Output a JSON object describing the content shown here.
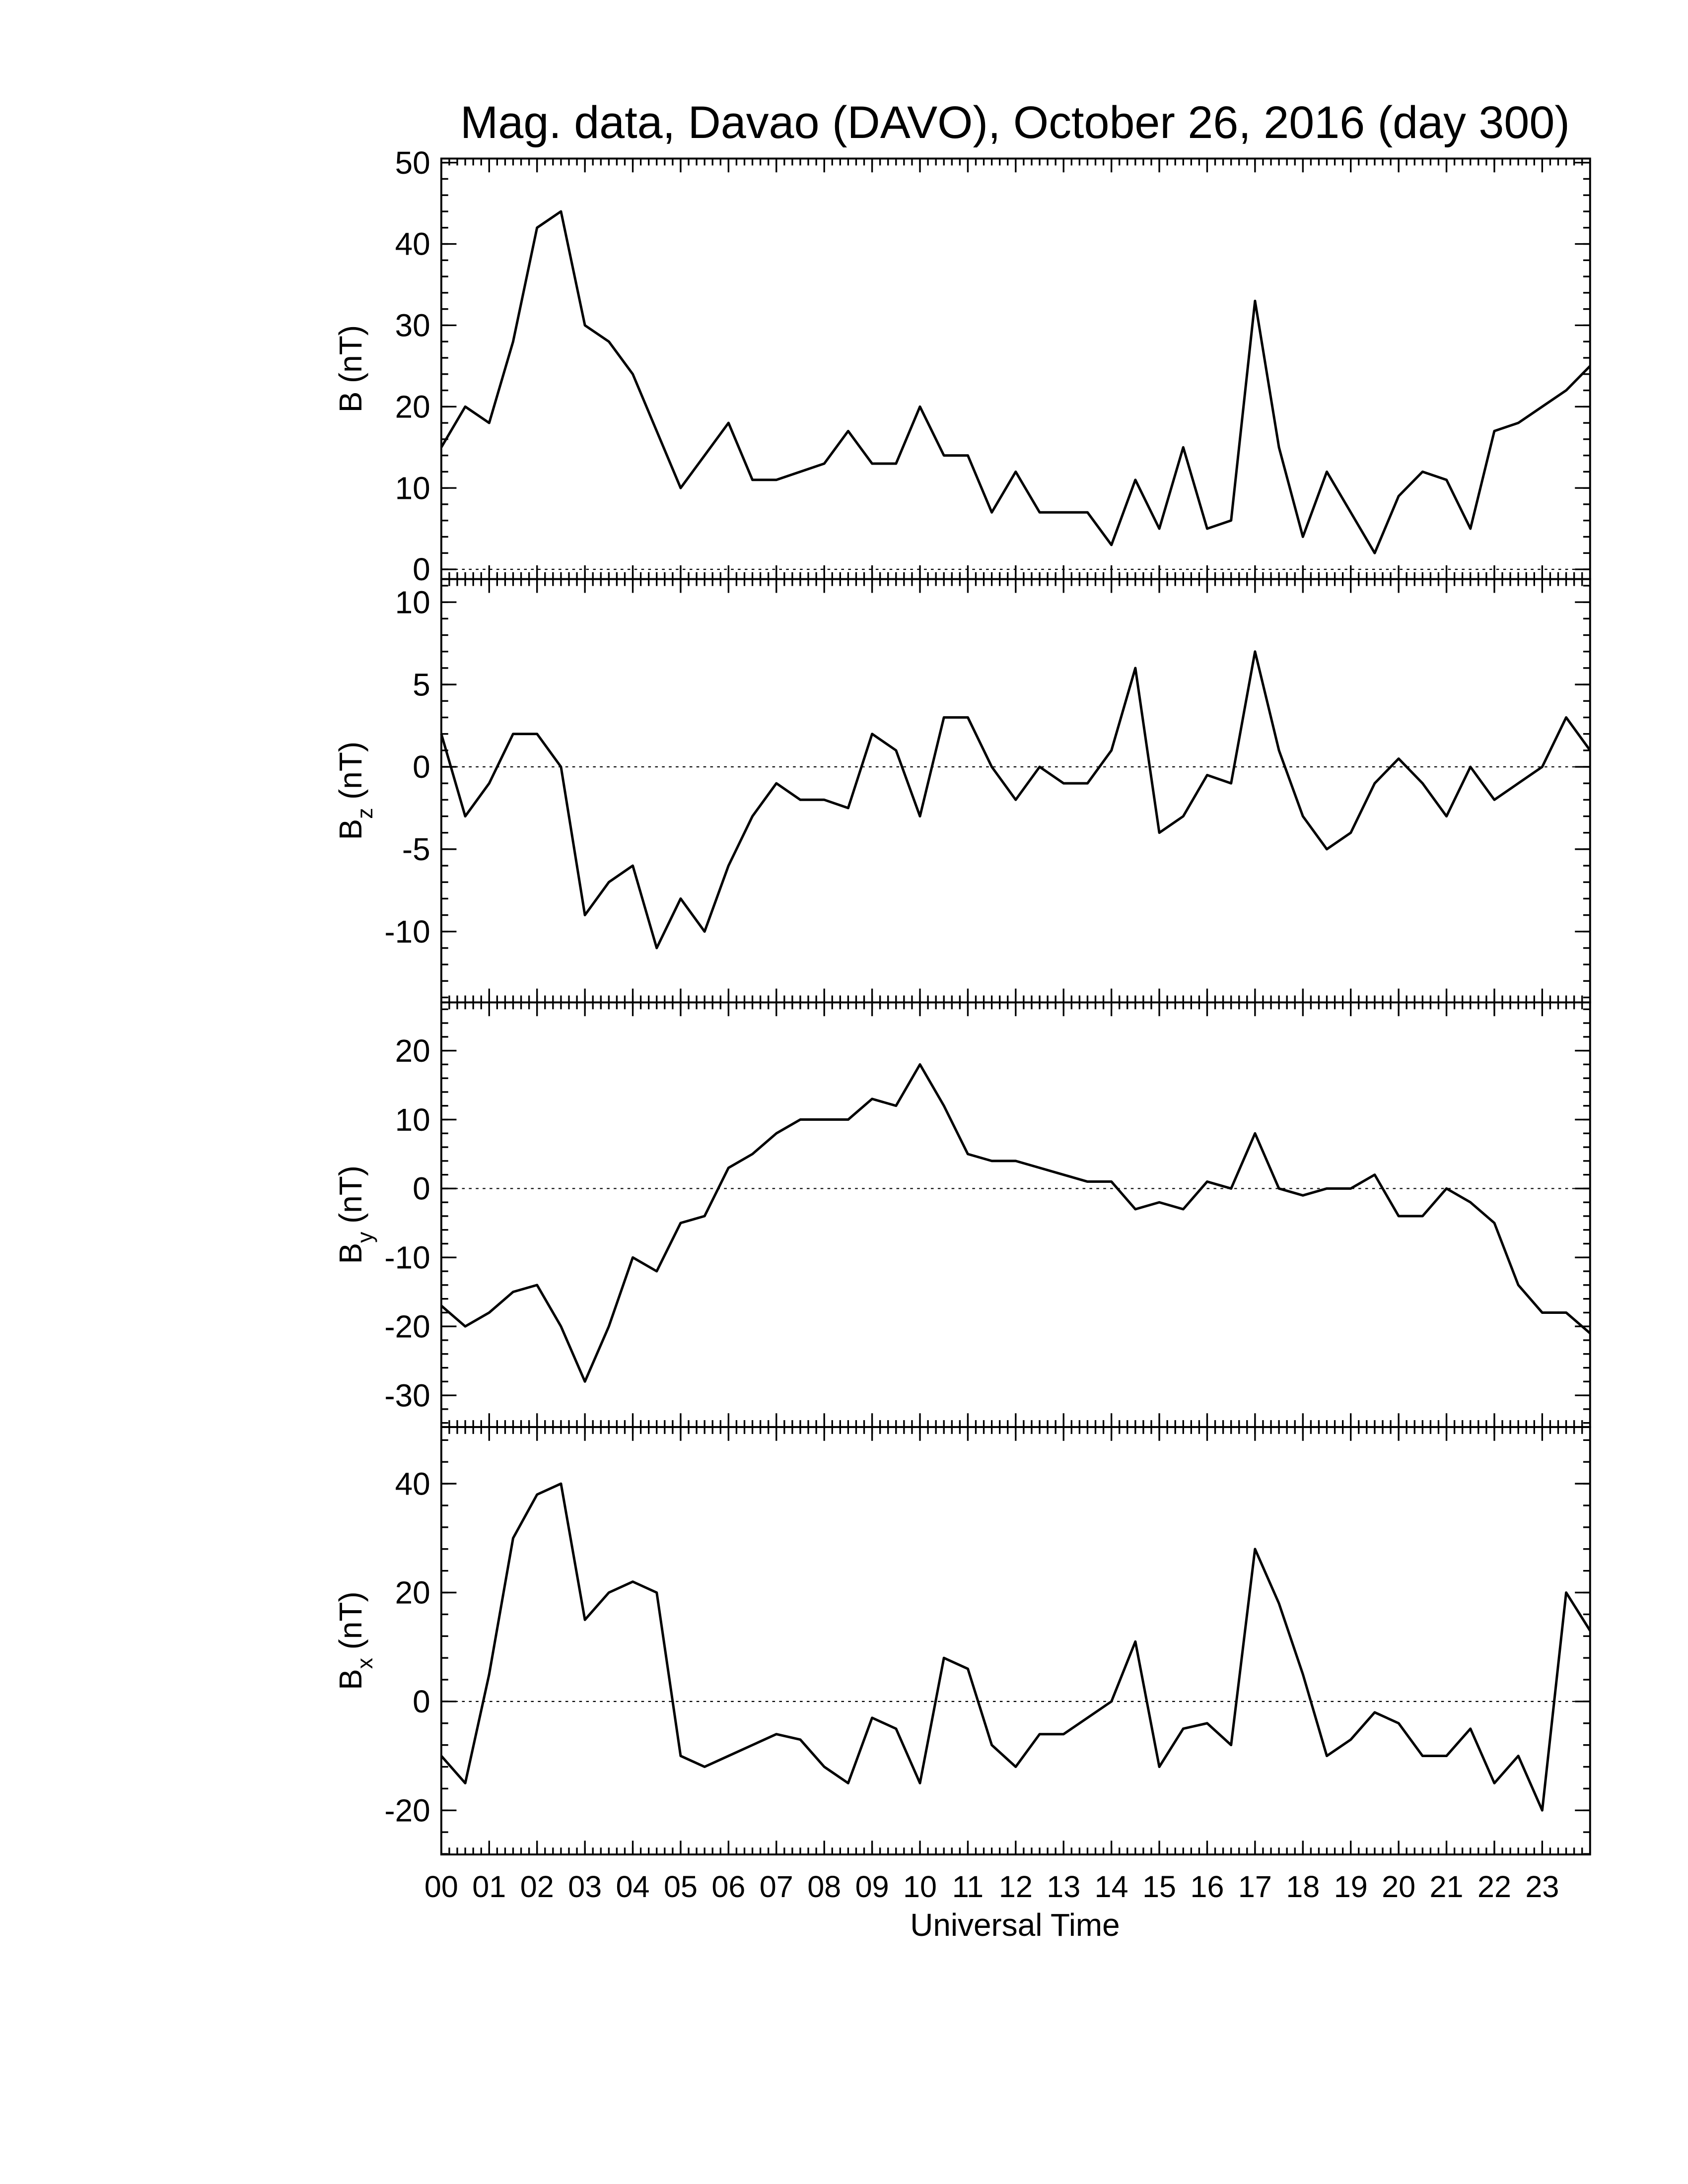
{
  "chart_data": [
    {
      "type": "line",
      "title": "Mag. data, Davao (DAVO), October 26, 2016 (day 300)",
      "ylabel": {
        "base": "B",
        "unit": "(nT)"
      },
      "x": [
        0,
        0.5,
        1,
        1.5,
        2,
        2.5,
        3,
        3.5,
        4,
        4.5,
        5,
        5.5,
        6,
        6.5,
        7,
        7.5,
        8,
        8.5,
        9,
        9.5,
        10,
        10.5,
        11,
        11.5,
        12,
        12.5,
        13,
        13.5,
        14,
        14.5,
        15,
        15.5,
        16,
        16.5,
        17,
        17.5,
        18,
        18.5,
        19,
        19.5,
        20,
        20.5,
        21,
        21.5,
        22,
        22.5,
        23,
        23.5,
        24
      ],
      "values": [
        15,
        20,
        18,
        28,
        42,
        44,
        30,
        28,
        24,
        17,
        10,
        14,
        18,
        11,
        11,
        12,
        13,
        17,
        13,
        13,
        20,
        14,
        14,
        7,
        12,
        7,
        7,
        7,
        3,
        11,
        5,
        15,
        5,
        6,
        33,
        15,
        4,
        12,
        7,
        2,
        9,
        12,
        11,
        5,
        17,
        18,
        20,
        22,
        25
      ],
      "color": "#000000",
      "xlim": [
        0,
        24
      ],
      "xticks": [
        0,
        1,
        2,
        3,
        4,
        5,
        6,
        7,
        8,
        9,
        10,
        11,
        12,
        13,
        14,
        15,
        16,
        17,
        18,
        19,
        20,
        21,
        22,
        23
      ],
      "xminor": 6,
      "ylim": [
        -1.2,
        50.5
      ],
      "yticks": [
        0,
        10,
        20,
        30,
        40,
        50
      ],
      "yminor": 5,
      "zero_line": true
    },
    {
      "type": "line",
      "ylabel": {
        "base": "B",
        "sub": "z",
        "unit": "(nT)"
      },
      "x": [
        0,
        0.5,
        1,
        1.5,
        2,
        2.5,
        3,
        3.5,
        4,
        4.5,
        5,
        5.5,
        6,
        6.5,
        7,
        7.5,
        8,
        8.5,
        9,
        9.5,
        10,
        10.5,
        11,
        11.5,
        12,
        12.5,
        13,
        13.5,
        14,
        14.5,
        15,
        15.5,
        16,
        16.5,
        17,
        17.5,
        18,
        18.5,
        19,
        19.5,
        20,
        20.5,
        21,
        21.5,
        22,
        22.5,
        23,
        23.5,
        24
      ],
      "values": [
        2,
        -3,
        -1,
        2,
        2,
        0,
        -9,
        -7,
        -6,
        -11,
        -8,
        -10,
        -6,
        -3,
        -1,
        -2,
        -2,
        -2.5,
        2,
        1,
        -3,
        3,
        3,
        0,
        -2,
        0,
        -1,
        -1,
        1,
        6,
        -4,
        -3,
        -0.5,
        -1,
        7,
        1,
        -3,
        -5,
        -4,
        -1,
        0.5,
        -1,
        -3,
        0,
        -2,
        -1,
        0,
        3,
        1
      ],
      "color": "#000000",
      "xlim": [
        0,
        24
      ],
      "xticks": [
        0,
        1,
        2,
        3,
        4,
        5,
        6,
        7,
        8,
        9,
        10,
        11,
        12,
        13,
        14,
        15,
        16,
        17,
        18,
        19,
        20,
        21,
        22,
        23
      ],
      "xminor": 6,
      "ylim": [
        -14.3,
        11.4
      ],
      "yticks": [
        -10,
        -5,
        0,
        5,
        10
      ],
      "yminor": 5,
      "zero_line": true
    },
    {
      "type": "line",
      "ylabel": {
        "base": "B",
        "sub": "y",
        "unit": "(nT)"
      },
      "x": [
        0,
        0.5,
        1,
        1.5,
        2,
        2.5,
        3,
        3.5,
        4,
        4.5,
        5,
        5.5,
        6,
        6.5,
        7,
        7.5,
        8,
        8.5,
        9,
        9.5,
        10,
        10.5,
        11,
        11.5,
        12,
        12.5,
        13,
        13.5,
        14,
        14.5,
        15,
        15.5,
        16,
        16.5,
        17,
        17.5,
        18,
        18.5,
        19,
        19.5,
        20,
        20.5,
        21,
        21.5,
        22,
        22.5,
        23,
        23.5,
        24
      ],
      "values": [
        -17,
        -20,
        -18,
        -15,
        -14,
        -20,
        -28,
        -20,
        -10,
        -12,
        -5,
        -4,
        3,
        5,
        8,
        10,
        10,
        10,
        13,
        12,
        18,
        12,
        5,
        4,
        4,
        3,
        2,
        1,
        1,
        -3,
        -2,
        -3,
        1,
        0,
        8,
        0,
        -1,
        0,
        0,
        2,
        -4,
        -4,
        0,
        -2,
        -5,
        -14,
        -18,
        -18,
        -21
      ],
      "color": "#000000",
      "xlim": [
        0,
        24
      ],
      "xticks": [
        0,
        1,
        2,
        3,
        4,
        5,
        6,
        7,
        8,
        9,
        10,
        11,
        12,
        13,
        14,
        15,
        16,
        17,
        18,
        19,
        20,
        21,
        22,
        23
      ],
      "xminor": 6,
      "ylim": [
        -34.6,
        27
      ],
      "yticks": [
        -30,
        -20,
        -10,
        0,
        10,
        20
      ],
      "yminor": 5,
      "zero_line": true
    },
    {
      "type": "line",
      "xlabel": "Universal Time",
      "ylabel": {
        "base": "B",
        "sub": "x",
        "unit": "(nT)"
      },
      "x": [
        0,
        0.5,
        1,
        1.5,
        2,
        2.5,
        3,
        3.5,
        4,
        4.5,
        5,
        5.5,
        6,
        6.5,
        7,
        7.5,
        8,
        8.5,
        9,
        9.5,
        10,
        10.5,
        11,
        11.5,
        12,
        12.5,
        13,
        13.5,
        14,
        14.5,
        15,
        15.5,
        16,
        16.5,
        17,
        17.5,
        18,
        18.5,
        19,
        19.5,
        20,
        20.5,
        21,
        21.5,
        22,
        22.5,
        23,
        23.5,
        24
      ],
      "values": [
        -10,
        -15,
        5,
        30,
        38,
        40,
        15,
        20,
        22,
        20,
        -10,
        -12,
        -10,
        -8,
        -6,
        -7,
        -12,
        -15,
        -3,
        -5,
        -15,
        8,
        6,
        -8,
        -12,
        -6,
        -6,
        -3,
        0,
        11,
        -12,
        -5,
        -4,
        -8,
        28,
        18,
        5,
        -10,
        -7,
        -2,
        -4,
        -10,
        -10,
        -5,
        -15,
        -10,
        -20,
        20,
        13
      ],
      "color": "#000000",
      "xlim": [
        0,
        24
      ],
      "xticks": [
        {
          "value": 0,
          "label": "00"
        },
        {
          "value": 1,
          "label": "01"
        },
        {
          "value": 2,
          "label": "02"
        },
        {
          "value": 3,
          "label": "03"
        },
        {
          "value": 4,
          "label": "04"
        },
        {
          "value": 5,
          "label": "05"
        },
        {
          "value": 6,
          "label": "06"
        },
        {
          "value": 7,
          "label": "07"
        },
        {
          "value": 8,
          "label": "08"
        },
        {
          "value": 9,
          "label": "09"
        },
        {
          "value": 10,
          "label": "10"
        },
        {
          "value": 11,
          "label": "11"
        },
        {
          "value": 12,
          "label": "12"
        },
        {
          "value": 13,
          "label": "13"
        },
        {
          "value": 14,
          "label": "14"
        },
        {
          "value": 15,
          "label": "15"
        },
        {
          "value": 16,
          "label": "16"
        },
        {
          "value": 17,
          "label": "17"
        },
        {
          "value": 18,
          "label": "18"
        },
        {
          "value": 19,
          "label": "19"
        },
        {
          "value": 20,
          "label": "20"
        },
        {
          "value": 21,
          "label": "21"
        },
        {
          "value": 22,
          "label": "22"
        },
        {
          "value": 23,
          "label": "23"
        }
      ],
      "xminor": 6,
      "ylim": [
        -28.1,
        50.4
      ],
      "yticks": [
        -20,
        0,
        20,
        40
      ],
      "yminor": 5,
      "zero_line": true
    }
  ]
}
